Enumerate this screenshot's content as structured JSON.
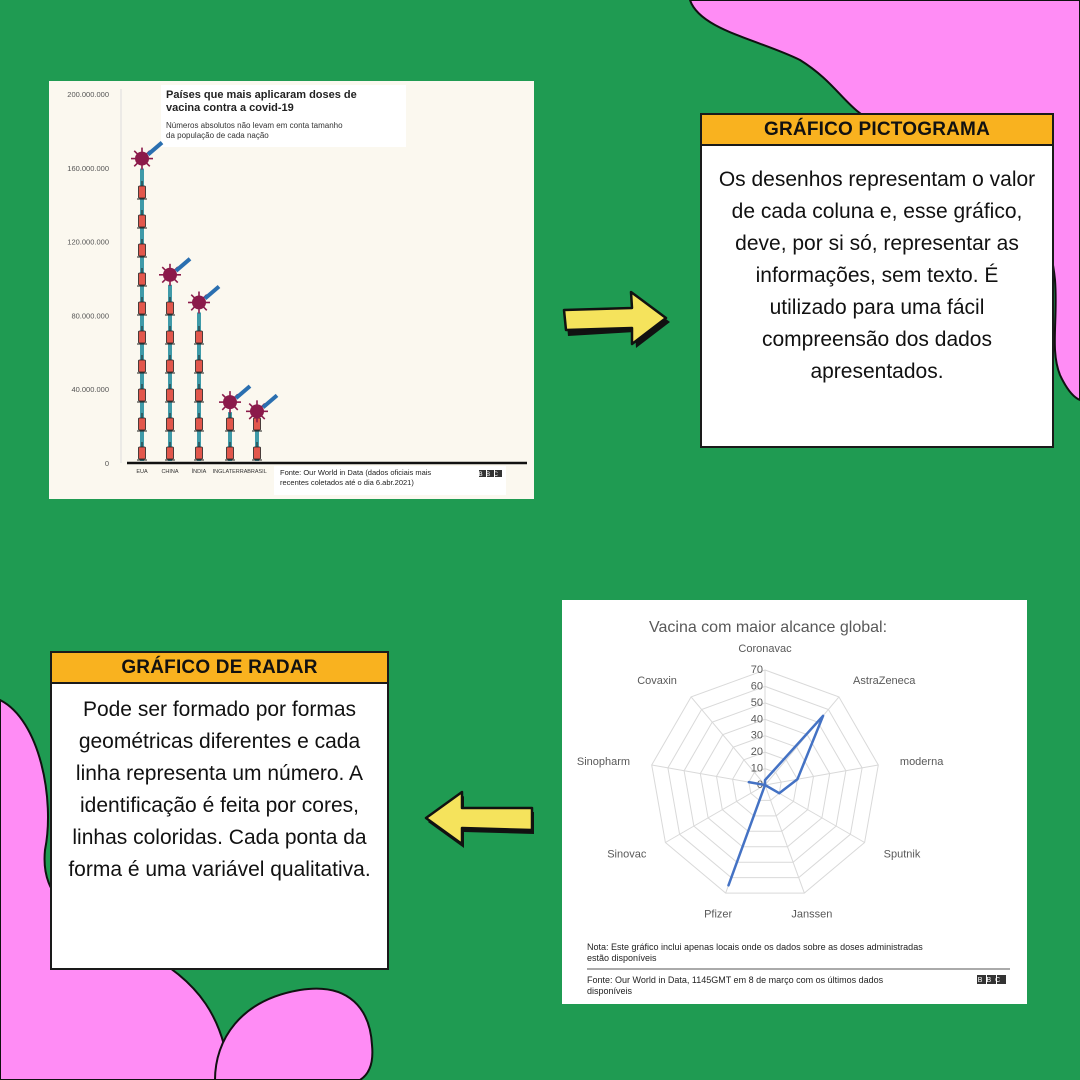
{
  "colors": {
    "background": "#1f9b52",
    "blob": "#ff8cf5",
    "header": "#f9b21f",
    "arrow": "#f5e35c",
    "radar_line": "#4472c4",
    "virus": "#8b1a4a",
    "syringe": "#2a8fa0"
  },
  "pictogram": {
    "title": "Países que mais aplicaram doses de vacina contra a covid-19",
    "subtitle": "Números absolutos não levam em conta tamanho da população de cada nação",
    "source": "Fonte: Our World in Data (dados oficiais mais recentes coletados até o dia 6.abr.2021)",
    "logo": "BBC"
  },
  "radar": {
    "title": "Vacina com maior alcance global:",
    "note": "Nota: Este gráfico inclui apenas locais onde os dados sobre as doses administradas estão disponíveis",
    "source": "Fonte: Our World in Data, 1145GMT em 8 de março com os últimos dados disponíveis",
    "logo": "BBC"
  },
  "box1": {
    "header": "GRÁFICO PICTOGRAMA",
    "text": "Os desenhos representam o valor de cada coluna e, esse gráfico, deve, por si só, representar as informações, sem texto. É utilizado para uma fácil compreensão dos dados apresentados."
  },
  "box2": {
    "header": "GRÁFICO DE RADAR",
    "text": "Pode ser formado por formas geométricas diferentes  e cada linha representa um número. A identificação é feita por cores, linhas coloridas. Cada ponta da forma é uma variável qualitativa."
  },
  "chart_data": [
    {
      "type": "bar",
      "style": "pictogram",
      "title": "Países que mais aplicaram doses de vacina contra a covid-19",
      "subtitle": "Números absolutos não levam em conta tamanho da população de cada nação",
      "categories": [
        "EUA",
        "CHINA",
        "ÍNDIA",
        "INGLATERRA",
        "BRASIL"
      ],
      "values": [
        165000000,
        102000000,
        87000000,
        33000000,
        28000000
      ],
      "yticks": [
        "0",
        "40.000.000",
        "80.000.000",
        "120.000.000",
        "160.000.000",
        "200.000.000"
      ],
      "ylim": [
        0,
        200000000
      ],
      "grid": false
    },
    {
      "type": "radar",
      "title": "Vacina com maior alcance global:",
      "categories": [
        "Coronavac",
        "AstraZeneca",
        "moderna",
        "Sputnik",
        "Janssen",
        "Pfizer",
        "Sinovac",
        "Sinopharm",
        "Covaxin"
      ],
      "values": [
        3,
        55,
        20,
        10,
        0,
        65,
        0,
        10,
        0
      ],
      "rticks": [
        "0",
        "10",
        "20",
        "30",
        "40",
        "50",
        "60",
        "70"
      ],
      "rlim": [
        0,
        70
      ],
      "grid": true
    }
  ]
}
